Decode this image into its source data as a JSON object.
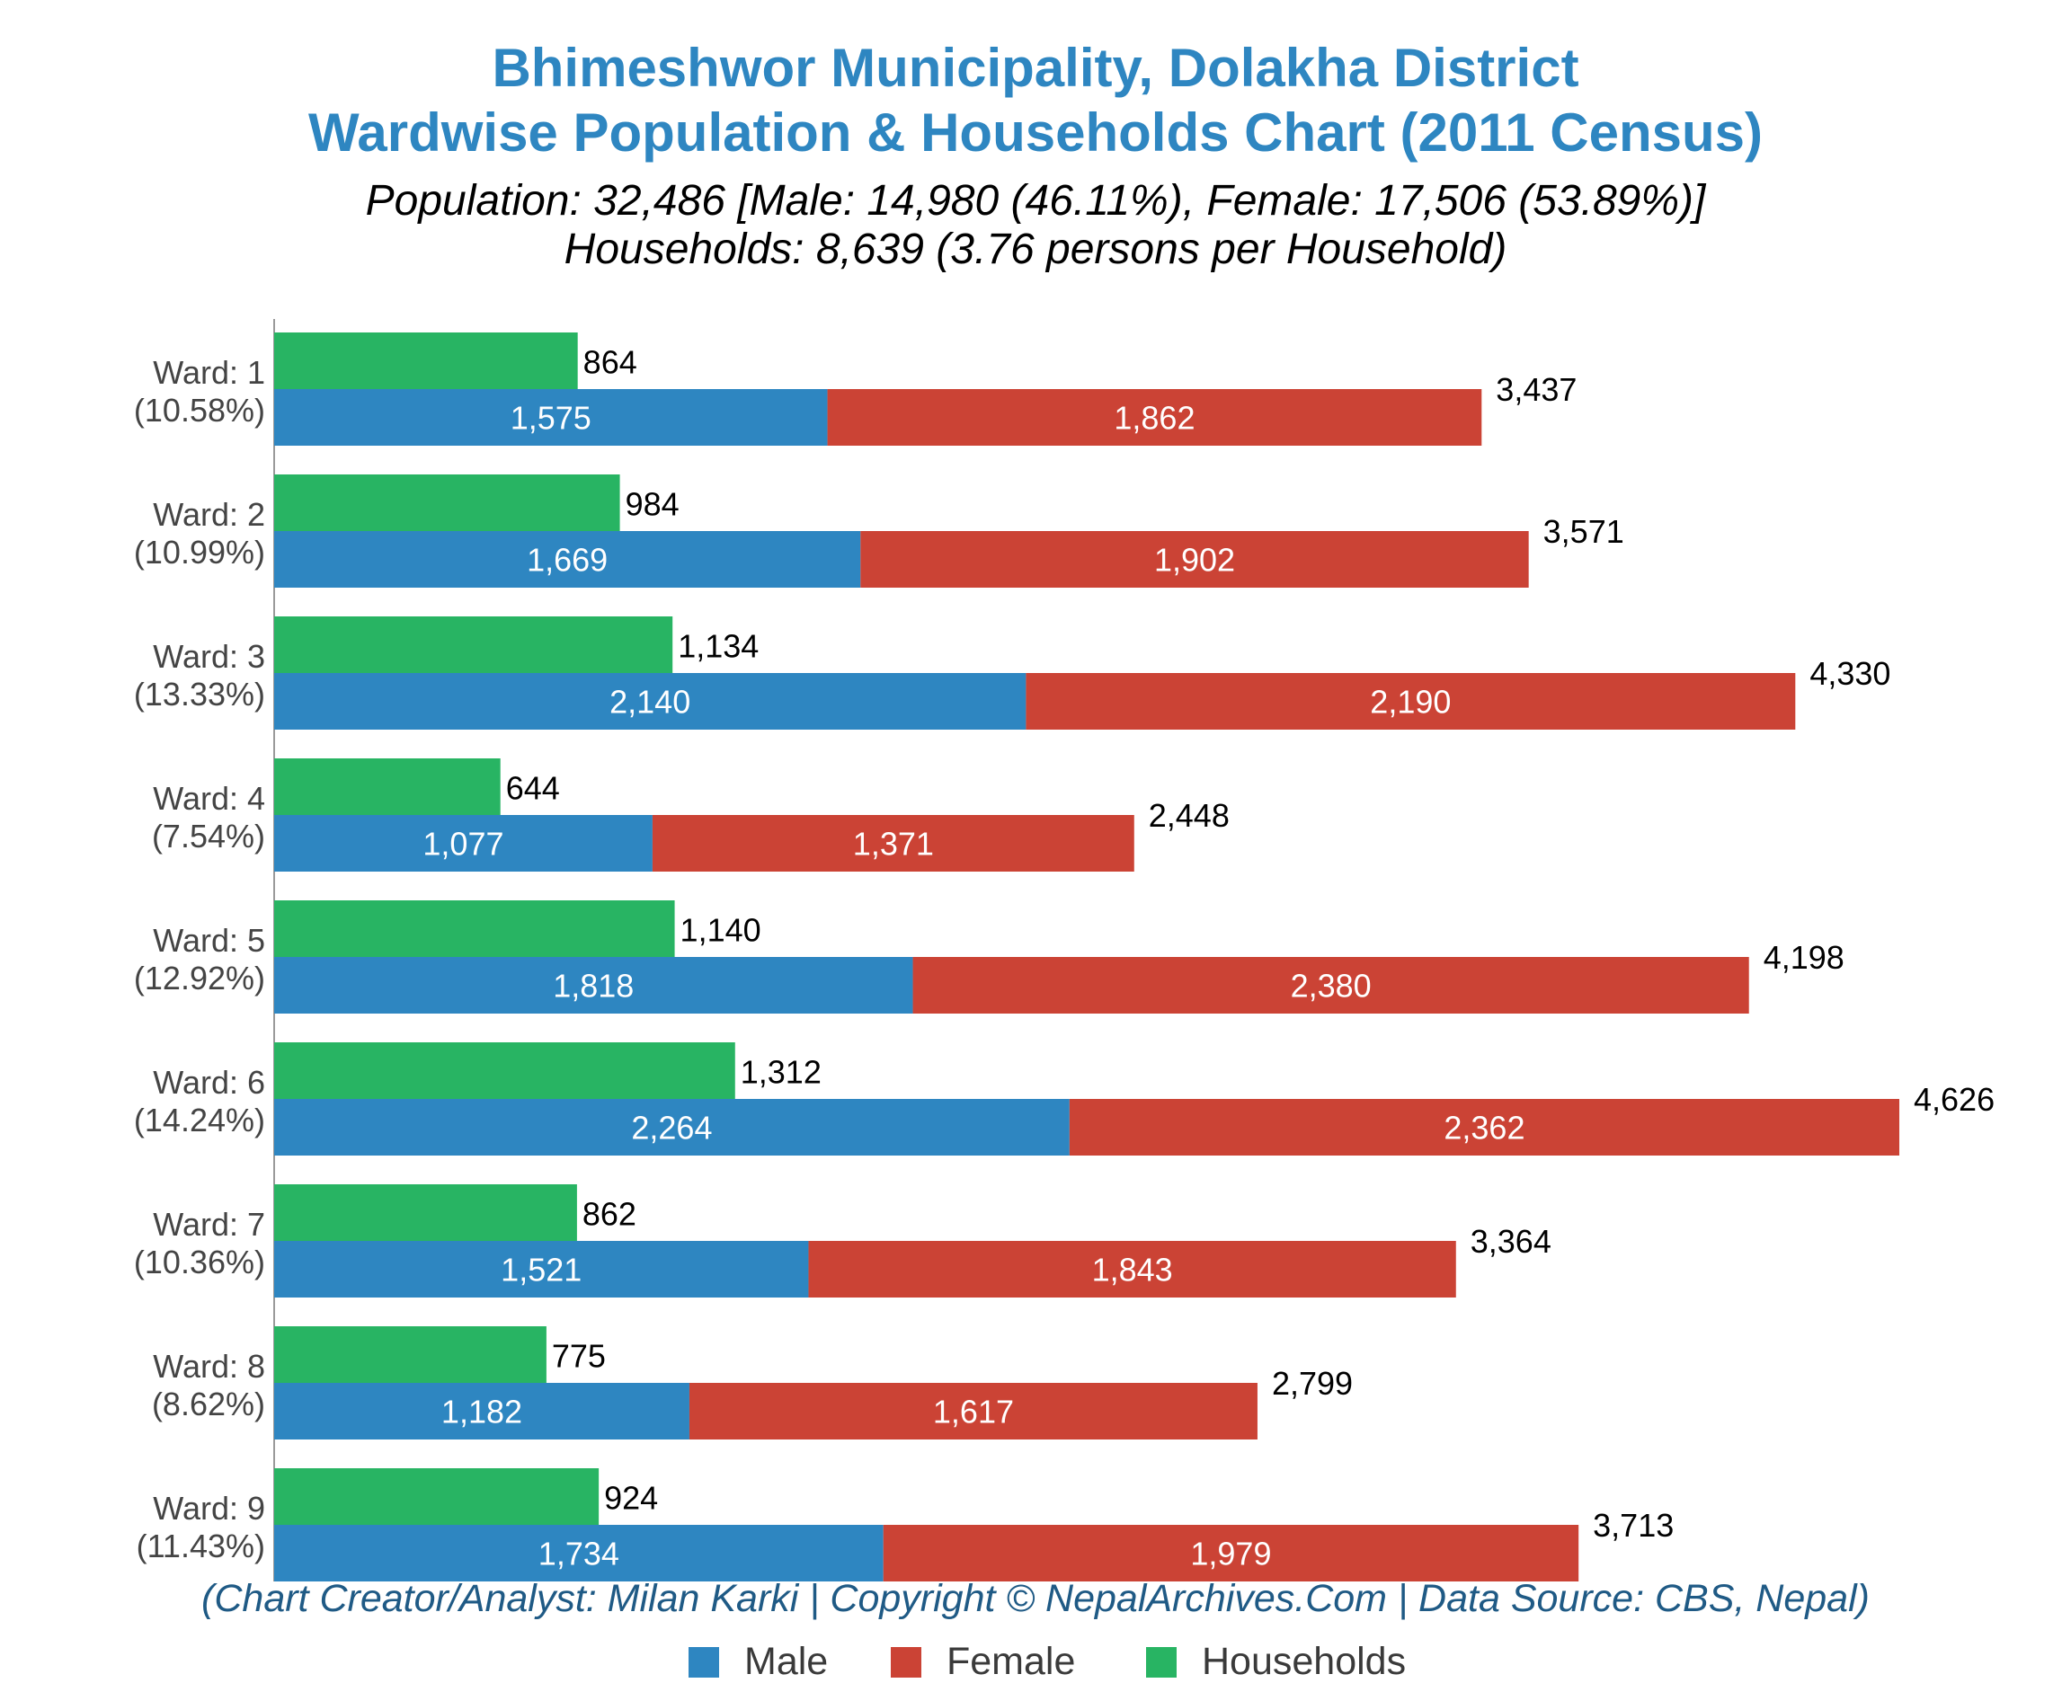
{
  "header": {
    "title_line1": "Bhimeshwor Municipality, Dolakha District",
    "title_line2": "Wardwise Population & Households Chart (2011 Census)",
    "subtitle_line1": "Population: 32,486 [Male: 14,980 (46.11%), Female: 17,506 (53.89%)]",
    "subtitle_line2": "Households: 8,639 (3.76 persons per Household)"
  },
  "footer": {
    "credit": "(Chart Creator/Analyst: Milan Karki | Copyright © NepalArchives.Com | Data Source: CBS, Nepal)"
  },
  "legend": {
    "placement": "bottom-center",
    "items": [
      {
        "label": "Male",
        "color": "#2e86c1"
      },
      {
        "label": "Female",
        "color": "#cb4335"
      },
      {
        "label": "Households",
        "color": "#28b463"
      }
    ]
  },
  "chart_data": {
    "type": "bar",
    "orientation": "horizontal",
    "stacked_series": [
      "Male",
      "Female"
    ],
    "grid": false,
    "xlim": [
      0,
      4900
    ],
    "categories": [
      "Ward: 1",
      "Ward: 2",
      "Ward: 3",
      "Ward: 4",
      "Ward: 5",
      "Ward: 6",
      "Ward: 7",
      "Ward: 8",
      "Ward: 9"
    ],
    "category_shares": [
      "(10.58%)",
      "(10.99%)",
      "(13.33%)",
      "(7.54%)",
      "(12.92%)",
      "(14.24%)",
      "(10.36%)",
      "(8.62%)",
      "(11.43%)"
    ],
    "series": [
      {
        "name": "Male",
        "color": "#2e86c1",
        "values": [
          1575,
          1669,
          2140,
          1077,
          1818,
          2264,
          1521,
          1182,
          1734
        ]
      },
      {
        "name": "Female",
        "color": "#cb4335",
        "values": [
          1862,
          1902,
          2190,
          1371,
          2380,
          2362,
          1843,
          1617,
          1979
        ]
      },
      {
        "name": "Households",
        "color": "#28b463",
        "values": [
          864,
          984,
          1134,
          644,
          1140,
          1312,
          862,
          775,
          924
        ]
      }
    ],
    "totals": [
      3437,
      3571,
      4330,
      2448,
      4198,
      4626,
      3364,
      2799,
      3713
    ]
  }
}
